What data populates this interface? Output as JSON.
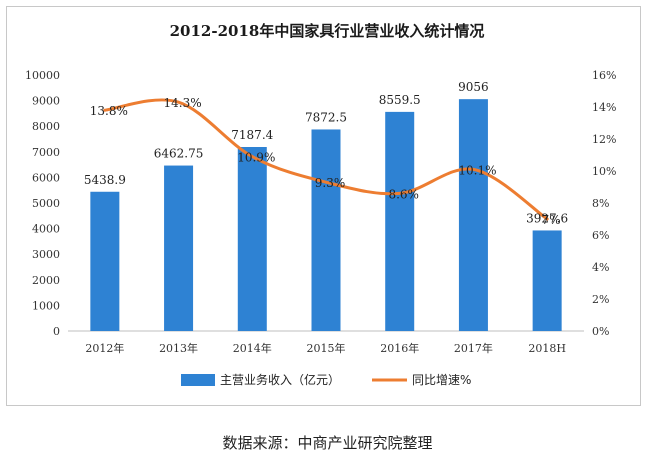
{
  "chart_data": {
    "type": "bar+line",
    "title": "2012-2018年中国家具行业营业收入统计情况",
    "categories": [
      "2012年",
      "2013年",
      "2014年",
      "2015年",
      "2016年",
      "2017年",
      "2018H"
    ],
    "series": [
      {
        "name": "主营业务收入（亿元）",
        "type": "bar",
        "axis": "left",
        "values": [
          5438.9,
          6462.75,
          7187.4,
          7872.5,
          8559.5,
          9056,
          3927.6
        ],
        "labels": [
          "5438.9",
          "6462.75",
          "7187.4",
          "7872.5",
          "8559.5",
          "9056",
          "3927.6"
        ],
        "color": "#2e82d3"
      },
      {
        "name": "同比增速%",
        "type": "line",
        "axis": "right",
        "values": [
          13.8,
          14.3,
          10.9,
          9.3,
          8.6,
          10.1,
          7
        ],
        "labels": [
          "13.8%",
          "14.3%",
          "10.9%",
          "9.3%",
          "8.6%",
          "10.1%",
          "7%"
        ],
        "color": "#ed7d31"
      }
    ],
    "y_left": {
      "range": [
        0,
        10000
      ],
      "ticks": [
        "0",
        "1000",
        "2000",
        "3000",
        "4000",
        "5000",
        "6000",
        "7000",
        "8000",
        "9000",
        "10000"
      ]
    },
    "y_right": {
      "range": [
        0,
        16
      ],
      "ticks": [
        "0%",
        "2%",
        "4%",
        "6%",
        "8%",
        "10%",
        "12%",
        "14%",
        "16%"
      ]
    },
    "grid": false,
    "legend": "bottom"
  },
  "source_text": "数据来源：中商产业研究院整理"
}
